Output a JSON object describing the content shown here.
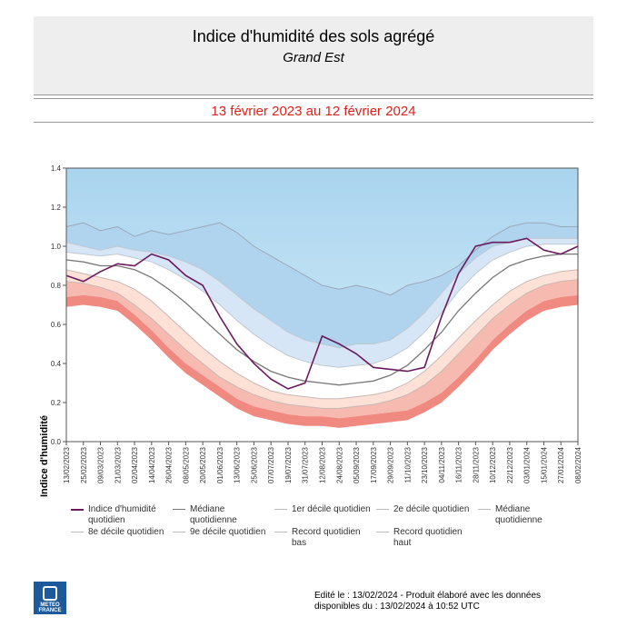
{
  "header": {
    "title": "Indice d'humidité des sols agrégé",
    "region": "Grand Est",
    "period": "13 février 2023 au 12 février 2024"
  },
  "colors": {
    "index_line": "#6b1a5e",
    "median": "#777777",
    "band_record_low": "#f08a80",
    "band_d1": "#f7bab0",
    "band_d2": "#fde0d6",
    "band_center": "#ffffff",
    "band_d8": "#d6e6f6",
    "band_d9": "#b0d3ee",
    "band_record_high": "#92c7e6",
    "bg_top": "#a9d4ee",
    "bg_bottom": "#daeffa"
  },
  "chart_data": {
    "type": "area",
    "ylabel": "Indice d'humidité",
    "ylim": [
      0.0,
      1.4
    ],
    "yticks": [
      "0.0",
      "0.2",
      "0.4",
      "0.6",
      "0.8",
      "1.0",
      "1.2",
      "1.4"
    ],
    "grid": false,
    "x_tick_labels": [
      "13/02/2023",
      "25/02/2023",
      "09/03/2023",
      "21/03/2023",
      "02/04/2023",
      "14/04/2023",
      "26/04/2023",
      "08/05/2023",
      "20/05/2023",
      "01/06/2023",
      "13/06/2023",
      "25/06/2023",
      "07/07/2023",
      "19/07/2023",
      "31/07/2023",
      "12/08/2023",
      "24/08/2023",
      "05/09/2023",
      "17/09/2023",
      "29/09/2023",
      "11/10/2023",
      "23/10/2023",
      "04/11/2023",
      "16/11/2023",
      "28/11/2023",
      "10/12/2023",
      "22/12/2023",
      "03/01/2024",
      "15/01/2024",
      "27/01/2024",
      "08/02/2024"
    ],
    "x_dates": [
      "13/02",
      "25/02",
      "09/03",
      "21/03",
      "02/04",
      "14/04",
      "26/04",
      "08/05",
      "20/05",
      "01/06",
      "13/06",
      "25/06",
      "07/07",
      "19/07",
      "31/07",
      "12/08",
      "24/08",
      "05/09",
      "17/09",
      "29/09",
      "11/10",
      "23/10",
      "04/11",
      "16/11",
      "28/11",
      "10/12",
      "22/12",
      "03/01",
      "15/01",
      "27/01",
      "08/02"
    ],
    "series": [
      {
        "name": "Record quotidien haut",
        "values": [
          1.1,
          1.12,
          1.08,
          1.1,
          1.05,
          1.08,
          1.06,
          1.08,
          1.1,
          1.12,
          1.07,
          1.0,
          0.95,
          0.9,
          0.85,
          0.8,
          0.78,
          0.8,
          0.78,
          0.75,
          0.8,
          0.82,
          0.85,
          0.9,
          0.98,
          1.05,
          1.1,
          1.12,
          1.12,
          1.1,
          1.1
        ]
      },
      {
        "name": "9e décile quotidien",
        "values": [
          1.02,
          1.0,
          0.98,
          1.0,
          0.98,
          0.97,
          0.95,
          0.92,
          0.88,
          0.82,
          0.75,
          0.68,
          0.62,
          0.56,
          0.52,
          0.5,
          0.48,
          0.5,
          0.5,
          0.52,
          0.58,
          0.66,
          0.76,
          0.86,
          0.94,
          1.0,
          1.02,
          1.04,
          1.04,
          1.04,
          1.04
        ]
      },
      {
        "name": "8e décile quotidien",
        "values": [
          0.97,
          0.96,
          0.95,
          0.96,
          0.94,
          0.92,
          0.88,
          0.83,
          0.77,
          0.7,
          0.62,
          0.55,
          0.49,
          0.44,
          0.41,
          0.39,
          0.38,
          0.39,
          0.4,
          0.43,
          0.48,
          0.56,
          0.66,
          0.77,
          0.86,
          0.93,
          0.97,
          1.0,
          1.01,
          1.01,
          1.01
        ]
      },
      {
        "name": "Médiane quotidienne",
        "values": [
          0.93,
          0.92,
          0.9,
          0.9,
          0.88,
          0.84,
          0.78,
          0.71,
          0.63,
          0.55,
          0.47,
          0.41,
          0.36,
          0.33,
          0.31,
          0.3,
          0.29,
          0.3,
          0.31,
          0.34,
          0.39,
          0.47,
          0.56,
          0.67,
          0.76,
          0.84,
          0.9,
          0.93,
          0.95,
          0.96,
          0.96
        ]
      },
      {
        "name": "2e décile quotidien",
        "values": [
          0.88,
          0.86,
          0.84,
          0.82,
          0.78,
          0.72,
          0.64,
          0.56,
          0.48,
          0.41,
          0.35,
          0.3,
          0.26,
          0.24,
          0.23,
          0.22,
          0.22,
          0.23,
          0.24,
          0.26,
          0.3,
          0.36,
          0.44,
          0.53,
          0.62,
          0.7,
          0.77,
          0.82,
          0.85,
          0.87,
          0.88
        ]
      },
      {
        "name": "1er décile quotidien",
        "values": [
          0.82,
          0.81,
          0.79,
          0.76,
          0.7,
          0.63,
          0.55,
          0.47,
          0.4,
          0.33,
          0.28,
          0.24,
          0.21,
          0.19,
          0.18,
          0.17,
          0.17,
          0.18,
          0.19,
          0.21,
          0.24,
          0.29,
          0.36,
          0.45,
          0.54,
          0.63,
          0.7,
          0.76,
          0.8,
          0.82,
          0.83
        ]
      },
      {
        "name": "Record quotidien bas",
        "values": [
          0.74,
          0.75,
          0.74,
          0.72,
          0.65,
          0.57,
          0.48,
          0.4,
          0.34,
          0.28,
          0.22,
          0.18,
          0.16,
          0.14,
          0.13,
          0.13,
          0.12,
          0.13,
          0.14,
          0.15,
          0.16,
          0.2,
          0.25,
          0.33,
          0.42,
          0.52,
          0.6,
          0.67,
          0.72,
          0.74,
          0.75
        ]
      },
      {
        "name": "Indice d'humidité quotidien",
        "values": [
          0.85,
          0.82,
          0.87,
          0.91,
          0.9,
          0.96,
          0.93,
          0.85,
          0.8,
          0.64,
          0.5,
          0.4,
          0.32,
          0.27,
          0.3,
          0.54,
          0.5,
          0.45,
          0.38,
          0.37,
          0.36,
          0.38,
          0.64,
          0.86,
          1.0,
          1.02,
          1.02,
          1.04,
          0.98,
          0.96,
          1.0
        ]
      }
    ]
  },
  "legend": [
    {
      "label": "Indice d'humidité quotidien",
      "color": "#6b1a5e"
    },
    {
      "label": "Médiane quotidienne",
      "color": "#777777"
    },
    {
      "label": "1er décile quotidien",
      "color": "#bbbbbb"
    },
    {
      "label": "2e décile quotidien",
      "color": "#bbbbbb"
    },
    {
      "label": "Médiane quotidienne",
      "color": "#bbbbbb"
    },
    {
      "label": "8e décile quotidien",
      "color": "#bbbbbb"
    },
    {
      "label": "9e décile quotidien",
      "color": "#bbbbbb"
    },
    {
      "label": "Record quotidien bas",
      "color": "#bbbbbb"
    },
    {
      "label": "Record quotidien haut",
      "color": "#bbbbbb"
    }
  ],
  "footer": {
    "line1": "Edité le : 13/02/2024 - Produit élaboré avec les données",
    "line2": "disponibles du : 13/02/2024 à 10:52 UTC"
  },
  "logo": {
    "text_line1": "METEO",
    "text_line2": "FRANCE"
  }
}
